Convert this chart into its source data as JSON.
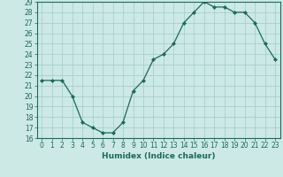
{
  "x": [
    0,
    1,
    2,
    3,
    4,
    5,
    6,
    7,
    8,
    9,
    10,
    11,
    12,
    13,
    14,
    15,
    16,
    17,
    18,
    19,
    20,
    21,
    22,
    23
  ],
  "y": [
    21.5,
    21.5,
    21.5,
    20.0,
    17.5,
    17.0,
    16.5,
    16.5,
    17.5,
    20.5,
    21.5,
    23.5,
    24.0,
    25.0,
    27.0,
    28.0,
    29.0,
    28.5,
    28.5,
    28.0,
    28.0,
    27.0,
    25.0,
    23.5
  ],
  "xlim": [
    -0.5,
    23.5
  ],
  "ylim": [
    16,
    29
  ],
  "yticks": [
    16,
    17,
    18,
    19,
    20,
    21,
    22,
    23,
    24,
    25,
    26,
    27,
    28,
    29
  ],
  "xticks": [
    0,
    1,
    2,
    3,
    4,
    5,
    6,
    7,
    8,
    9,
    10,
    11,
    12,
    13,
    14,
    15,
    16,
    17,
    18,
    19,
    20,
    21,
    22,
    23
  ],
  "xlabel": "Humidex (Indice chaleur)",
  "line_color": "#1a6b5a",
  "marker": "D",
  "marker_size": 2.0,
  "bg_color": "#cce9e5",
  "grid_color": "#a0ccc8",
  "tick_fontsize": 5.5,
  "xlabel_fontsize": 6.5
}
